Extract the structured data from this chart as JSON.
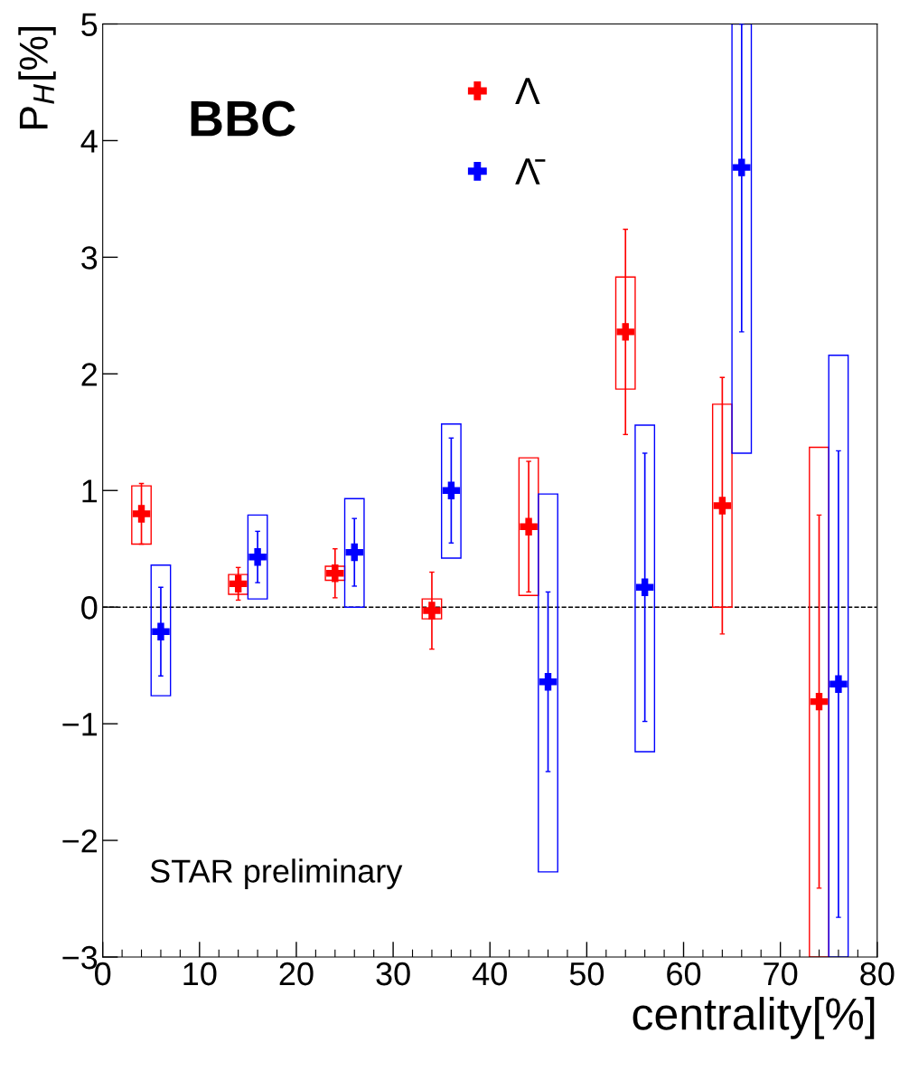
{
  "chart_data": {
    "type": "scatter",
    "xlabel": "centrality[%]",
    "ylabel": "P$_{H}$[%]",
    "annotations": [
      "BBC",
      "STAR preliminary"
    ],
    "xlim": [
      0,
      80
    ],
    "xticks": [
      0,
      10,
      20,
      30,
      40,
      50,
      60,
      70,
      80
    ],
    "ylim": [
      -3,
      5
    ],
    "yticks": [
      -3,
      -2,
      -1,
      0,
      1,
      2,
      3,
      4,
      5
    ],
    "ref_lines": [
      {
        "axis": "y",
        "value": 0,
        "color": "#000000",
        "line_style": "dashed"
      }
    ],
    "legend": "top",
    "grid": false,
    "series": [
      {
        "type": "bar",
        "color": "#ff0000",
        "x": [
          4,
          14,
          24,
          34,
          44,
          54,
          64,
          74
        ],
        "base": [
          0.54,
          0.11,
          0.23,
          -0.1,
          0.1,
          1.87,
          0,
          -3.0
        ],
        "values": [
          0.5,
          0.17,
          0.12,
          0.17,
          1.18,
          0.96,
          1.74,
          4.37
        ]
      },
      {
        "type": "bar",
        "color": "#0000ff",
        "x": [
          6,
          16,
          26,
          36,
          46,
          56,
          66,
          76
        ],
        "base": [
          -0.76,
          0.07,
          0,
          0.42,
          -2.27,
          -1.24,
          1.32,
          -3.0
        ],
        "values": [
          1.12,
          0.72,
          0.93,
          1.15,
          3.24,
          2.8,
          3.68,
          5.16
        ]
      },
      {
        "name": "Λ",
        "color": "#ff0000",
        "marker": "cross",
        "x": [
          4,
          14,
          24,
          34,
          44,
          54,
          64,
          74
        ],
        "values": [
          0.8,
          0.2,
          0.29,
          -0.03,
          0.69,
          2.36,
          0.87,
          -0.81
        ],
        "errors": [
          0.26,
          0.14,
          0.21,
          0.33,
          0.56,
          0.88,
          1.1,
          1.6
        ]
      },
      {
        "name": "Λ̄",
        "color": "#0000ff",
        "marker": "cross",
        "x": [
          6,
          16,
          26,
          36,
          46,
          56,
          66,
          76
        ],
        "values": [
          -0.21,
          0.43,
          0.47,
          1.0,
          -0.64,
          0.17,
          3.77,
          -0.66
        ],
        "errors": [
          0.38,
          0.22,
          0.29,
          0.45,
          0.77,
          1.15,
          [
            2.36,
            5
          ],
          2.0
        ]
      }
    ]
  }
}
